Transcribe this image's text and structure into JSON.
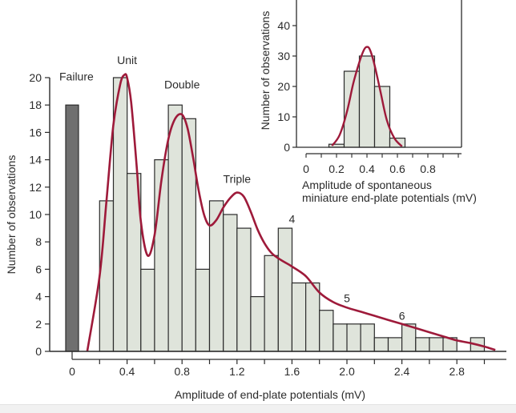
{
  "colors": {
    "bar_fill": "#dfe4db",
    "bar_stroke": "#2b2b2b",
    "failure_fill": "#6f6f6f",
    "curve": "#9e1a3a",
    "axis": "#2b2b2b"
  },
  "chart_data": [
    {
      "type": "bar",
      "chart": "main-histogram",
      "xlabel": "Amplitude of end-plate potentials (mV)",
      "ylabel": "Number of observations",
      "xlim": [
        -0.1,
        3.1
      ],
      "ylim": [
        0,
        20
      ],
      "grid": false,
      "bin_width": 0.1,
      "failure": {
        "label": "Failure",
        "x": 0,
        "count": 18
      },
      "bins": [
        {
          "x": 0.25,
          "count": 11
        },
        {
          "x": 0.35,
          "count": 20
        },
        {
          "x": 0.45,
          "count": 13
        },
        {
          "x": 0.55,
          "count": 6
        },
        {
          "x": 0.65,
          "count": 14
        },
        {
          "x": 0.75,
          "count": 18
        },
        {
          "x": 0.85,
          "count": 17
        },
        {
          "x": 0.95,
          "count": 6
        },
        {
          "x": 1.05,
          "count": 11
        },
        {
          "x": 1.15,
          "count": 10
        },
        {
          "x": 1.25,
          "count": 9
        },
        {
          "x": 1.35,
          "count": 4
        },
        {
          "x": 1.45,
          "count": 7
        },
        {
          "x": 1.55,
          "count": 9
        },
        {
          "x": 1.65,
          "count": 5
        },
        {
          "x": 1.75,
          "count": 5
        },
        {
          "x": 1.85,
          "count": 3
        },
        {
          "x": 1.95,
          "count": 2
        },
        {
          "x": 2.05,
          "count": 2
        },
        {
          "x": 2.15,
          "count": 2
        },
        {
          "x": 2.25,
          "count": 1
        },
        {
          "x": 2.35,
          "count": 1
        },
        {
          "x": 2.45,
          "count": 2
        },
        {
          "x": 2.55,
          "count": 1
        },
        {
          "x": 2.65,
          "count": 1
        },
        {
          "x": 2.75,
          "count": 1
        },
        {
          "x": 2.95,
          "count": 1
        }
      ],
      "fit_curve": {
        "x": [
          0.11,
          0.2,
          0.25,
          0.3,
          0.35,
          0.38,
          0.4,
          0.43,
          0.47,
          0.5,
          0.55,
          0.6,
          0.65,
          0.7,
          0.75,
          0.8,
          0.84,
          0.88,
          0.92,
          0.96,
          1.0,
          1.05,
          1.1,
          1.15,
          1.2,
          1.25,
          1.3,
          1.35,
          1.4,
          1.45,
          1.5,
          1.55,
          1.6,
          1.7,
          1.8,
          1.9,
          2.0,
          2.1,
          2.2,
          2.3,
          2.4,
          2.5,
          2.6,
          2.7,
          2.8,
          2.9,
          3.0,
          3.08
        ],
        "y": [
          0,
          5.5,
          11,
          16.5,
          19.5,
          20.2,
          20.0,
          18.2,
          13.5,
          9.5,
          7.0,
          8.5,
          12.5,
          15.5,
          17.0,
          17.3,
          16.3,
          14.2,
          11.8,
          10.0,
          9.2,
          9.6,
          10.5,
          11.2,
          11.6,
          11.3,
          10.2,
          8.9,
          7.9,
          7.2,
          6.8,
          6.5,
          6.2,
          5.5,
          4.3,
          3.6,
          3.2,
          2.9,
          2.6,
          2.3,
          2.0,
          1.7,
          1.4,
          1.1,
          0.8,
          0.6,
          0.35,
          0.1
        ]
      },
      "tick_labels": [
        "0",
        "0.4",
        "0.8",
        "1.2",
        "1.6",
        "2.0",
        "2.4",
        "2.8"
      ],
      "tick_values": [
        0,
        0.4,
        0.8,
        1.2,
        1.6,
        2.0,
        2.4,
        2.8
      ],
      "y_ticks": [
        0,
        2,
        4,
        6,
        8,
        10,
        12,
        14,
        16,
        18,
        20
      ],
      "annotations": [
        {
          "text": "Unit",
          "x": 0.4,
          "y": 21
        },
        {
          "text": "Double",
          "x": 0.8,
          "y": 19.2
        },
        {
          "text": "Triple",
          "x": 1.2,
          "y": 12.3
        },
        {
          "text": "4",
          "x": 1.6,
          "y": 9.4
        },
        {
          "text": "5",
          "x": 2.0,
          "y": 3.6
        },
        {
          "text": "6",
          "x": 2.4,
          "y": 2.3
        }
      ]
    },
    {
      "type": "bar",
      "chart": "inset-histogram",
      "xlabel": "Amplitude of spontaneous miniature end-plate potentials (mV)",
      "xlabel_lines": [
        "Amplitude of spontaneous",
        "miniature end-plate potentials (mV)"
      ],
      "ylabel": "Number of observations",
      "xlim": [
        -0.05,
        1.0
      ],
      "ylim": [
        0,
        40
      ],
      "grid": false,
      "bin_width": 0.1,
      "bins": [
        {
          "x": 0.2,
          "count": 1
        },
        {
          "x": 0.3,
          "count": 25
        },
        {
          "x": 0.4,
          "count": 30
        },
        {
          "x": 0.5,
          "count": 20
        },
        {
          "x": 0.6,
          "count": 3
        }
      ],
      "fit_curve": {
        "x": [
          0.17,
          0.22,
          0.27,
          0.31,
          0.35,
          0.38,
          0.4,
          0.42,
          0.45,
          0.49,
          0.53,
          0.58,
          0.63
        ],
        "y": [
          0.5,
          4,
          12,
          21,
          28,
          32,
          33,
          32,
          27,
          18,
          9,
          3,
          0.3
        ]
      },
      "tick_labels": [
        "0",
        "0.2",
        "0.4",
        "0.6",
        "0.8"
      ],
      "tick_values": [
        0,
        0.2,
        0.4,
        0.6,
        0.8
      ],
      "y_ticks": [
        0,
        10,
        20,
        30,
        40
      ]
    }
  ]
}
